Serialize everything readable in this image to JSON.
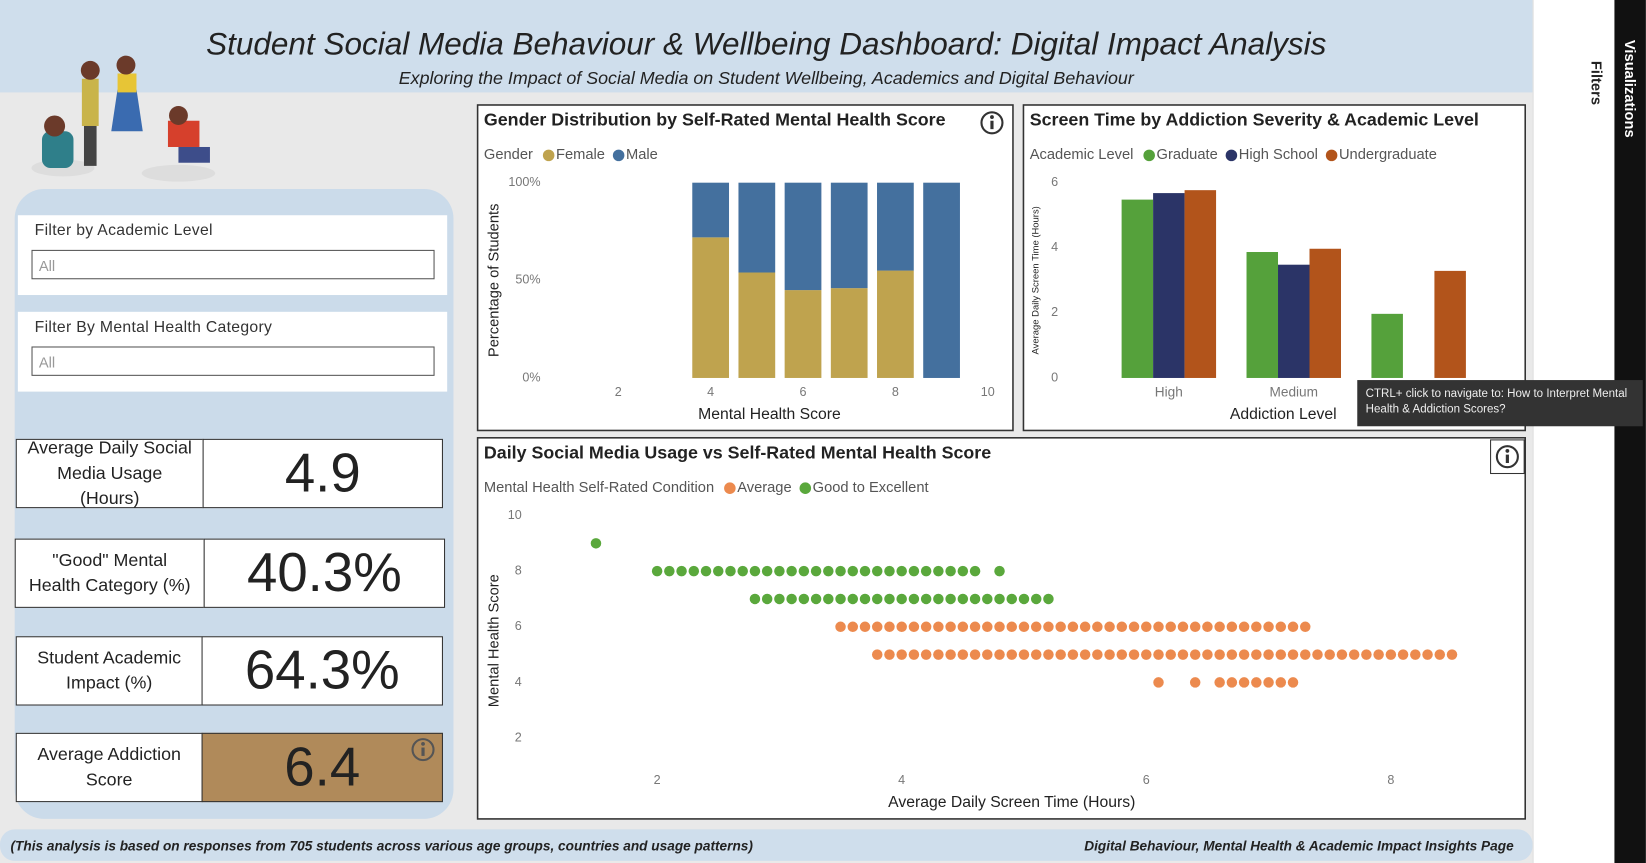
{
  "header": {
    "title": "Student Social Media Behaviour & Wellbeing Dashboard: Digital Impact Analysis",
    "subtitle": "Exploring the Impact of Social Media on Student Wellbeing, Academics and Digital Behaviour"
  },
  "filters": [
    {
      "label": "Filter by Academic Level",
      "value": "All"
    },
    {
      "label": "Filter By Mental Health Category",
      "value": "All"
    }
  ],
  "kpis": [
    {
      "label": "Average Daily Social Media Usage (Hours)",
      "value": "4.9"
    },
    {
      "label": "\"Good\" Mental Health Category (%)",
      "value": "40.3%"
    },
    {
      "label": "Student Academic Impact (%)",
      "value": "64.3%"
    },
    {
      "label": "Average Addiction Score",
      "value": "6.4"
    }
  ],
  "tooltip": "CTRL+ click to navigate to: How to Interpret Mental Health & Addiction Scores?",
  "footer": {
    "note": "(This analysis is based on responses from 705 students across various age groups, countries and usage patterns)",
    "page": "Digital Behaviour, Mental Health & Academic Impact Insights Page"
  },
  "side_panel": {
    "filters": "Filters",
    "visualizations": "Visualizations"
  },
  "chart_data": [
    {
      "type": "bar",
      "stacked": true,
      "title": "Gender Distribution by Self-Rated Mental Health Score",
      "legend_title": "Gender",
      "x_label": "Mental Health Score",
      "y_label": "Percentage of Students",
      "x": [
        4,
        5,
        6,
        7,
        8,
        9
      ],
      "xlim": [
        0.5,
        10.5
      ],
      "xticks": [
        2,
        4,
        6,
        8,
        10
      ],
      "ylim": [
        0,
        100
      ],
      "yticks": [
        {
          "value": 0,
          "label": "0%"
        },
        {
          "value": 50,
          "label": "50%"
        },
        {
          "value": 100,
          "label": "100%"
        }
      ],
      "series": [
        {
          "name": "Female",
          "color": "#bfa34e",
          "values": [
            72,
            54,
            45,
            46,
            55,
            0
          ]
        },
        {
          "name": "Male",
          "color": "#44709e",
          "values": [
            28,
            46,
            55,
            54,
            45,
            100
          ]
        }
      ]
    },
    {
      "type": "bar",
      "stacked": false,
      "title": "Screen Time by Addiction Severity & Academic Level",
      "legend_title": "Academic Level",
      "x_label": "Addiction Level",
      "y_label": "Average Daily Screen Time (Hours)",
      "categories": [
        "High",
        "Medium",
        null
      ],
      "ylim": [
        0,
        6
      ],
      "yticks": [
        0,
        2,
        4,
        6
      ],
      "series": [
        {
          "name": "Graduate",
          "color": "#55a13b",
          "values": [
            5.48,
            3.87,
            1.97
          ]
        },
        {
          "name": "High School",
          "color": "#2b3467",
          "values": [
            5.68,
            3.48,
            null
          ]
        },
        {
          "name": "Undergraduate",
          "color": "#b2541b",
          "values": [
            5.77,
            3.97,
            3.29
          ]
        }
      ]
    },
    {
      "type": "scatter",
      "title": "Daily Social Media Usage vs Self-Rated Mental Health Score",
      "legend_title": "Mental Health Self-Rated Condition",
      "x_label": "Average Daily Screen Time (Hours)",
      "y_label": "Mental Health Score",
      "xlim": [
        0.8,
        9
      ],
      "xticks": [
        2,
        4,
        6,
        8
      ],
      "ylim": [
        1,
        10
      ],
      "yticks": [
        2,
        4,
        6,
        8,
        10
      ],
      "series": [
        {
          "name": "Average",
          "color": "#ec8a4e",
          "x": [
            3.5,
            3.6,
            3.7,
            3.8,
            3.9,
            4,
            4.1,
            4.2,
            4.3,
            4.4,
            4.5,
            4.6,
            4.7,
            4.8,
            4.9,
            5,
            5.1,
            5.2,
            5.3,
            5.4,
            5.5,
            5.6,
            5.7,
            5.8,
            5.9,
            6,
            6.1,
            6.2,
            6.3,
            6.4,
            6.5,
            6.6,
            6.7,
            6.8,
            6.9,
            7,
            7.1,
            7.2,
            7.3,
            3.8,
            3.9,
            4,
            4.1,
            4.2,
            4.3,
            4.4,
            4.5,
            4.6,
            4.7,
            4.8,
            4.9,
            5,
            5.1,
            5.2,
            5.3,
            5.4,
            5.5,
            5.6,
            5.7,
            5.8,
            5.9,
            6,
            6.1,
            6.2,
            6.3,
            6.4,
            6.5,
            6.6,
            6.7,
            6.8,
            6.9,
            7,
            7.1,
            7.2,
            7.3,
            7.4,
            7.5,
            7.6,
            7.7,
            7.8,
            7.9,
            8,
            8.1,
            8.2,
            8.3,
            8.4,
            8.5,
            6.1,
            6.4,
            6.6,
            6.7,
            6.8,
            6.9,
            7,
            7.1,
            7.2
          ],
          "values": [
            6,
            6,
            6,
            6,
            6,
            6,
            6,
            6,
            6,
            6,
            6,
            6,
            6,
            6,
            6,
            6,
            6,
            6,
            6,
            6,
            6,
            6,
            6,
            6,
            6,
            6,
            6,
            6,
            6,
            6,
            6,
            6,
            6,
            6,
            6,
            6,
            6,
            6,
            6,
            5,
            5,
            5,
            5,
            5,
            5,
            5,
            5,
            5,
            5,
            5,
            5,
            5,
            5,
            5,
            5,
            5,
            5,
            5,
            5,
            5,
            5,
            5,
            5,
            5,
            5,
            5,
            5,
            5,
            5,
            5,
            5,
            5,
            5,
            5,
            5,
            5,
            5,
            5,
            5,
            5,
            5,
            5,
            5,
            5,
            5,
            5,
            5,
            4,
            4,
            4,
            4,
            4,
            4,
            4,
            4,
            4
          ]
        },
        {
          "name": "Good to Excellent",
          "color": "#5aa83c",
          "x": [
            1.5,
            2,
            2.1,
            2.2,
            2.3,
            2.4,
            2.5,
            2.6,
            2.7,
            2.8,
            2.9,
            3,
            3.1,
            3.2,
            3.3,
            3.4,
            3.5,
            3.6,
            3.7,
            3.8,
            3.9,
            4,
            4.1,
            4.2,
            4.3,
            4.4,
            4.5,
            4.6,
            4.8,
            2.8,
            2.9,
            3,
            3.1,
            3.2,
            3.3,
            3.4,
            3.5,
            3.6,
            3.7,
            3.8,
            3.9,
            4,
            4.1,
            4.2,
            4.3,
            4.4,
            4.5,
            4.6,
            4.7,
            4.8,
            4.9,
            5,
            5.1,
            5.2
          ],
          "values": [
            9,
            8,
            8,
            8,
            8,
            8,
            8,
            8,
            8,
            8,
            8,
            8,
            8,
            8,
            8,
            8,
            8,
            8,
            8,
            8,
            8,
            8,
            8,
            8,
            8,
            8,
            8,
            8,
            8,
            7,
            7,
            7,
            7,
            7,
            7,
            7,
            7,
            7,
            7,
            7,
            7,
            7,
            7,
            7,
            7,
            7,
            7,
            7,
            7,
            7,
            7,
            7,
            7,
            7
          ]
        }
      ]
    }
  ]
}
